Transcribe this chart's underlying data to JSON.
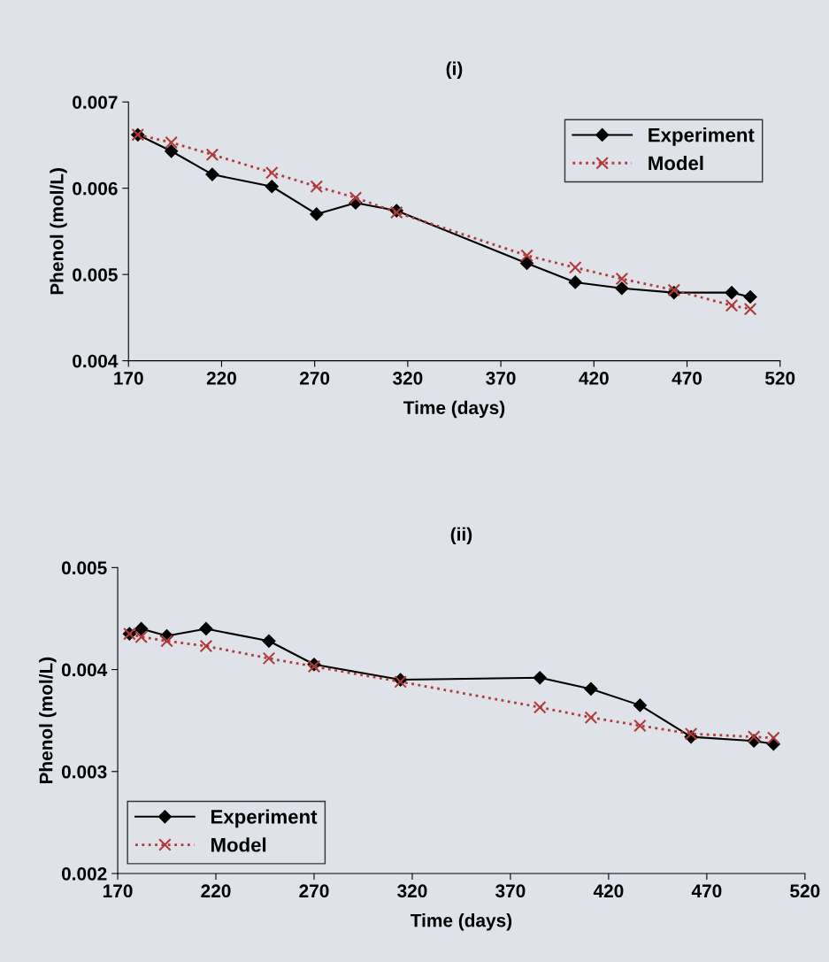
{
  "chart_data": [
    {
      "type": "line",
      "title": "(i)",
      "xlabel": "Time (days)",
      "ylabel": "Phenol (mol/L)",
      "xlim": [
        170,
        520
      ],
      "xticks": [
        170,
        220,
        270,
        320,
        370,
        420,
        470,
        520
      ],
      "ylim": [
        0.004,
        0.007
      ],
      "yticks": [
        {
          "value": 0.004,
          "label": "0.004"
        },
        {
          "value": 0.005,
          "label": "0.005"
        },
        {
          "value": 0.006,
          "label": "0.006"
        },
        {
          "value": 0.007,
          "label": "0.007"
        }
      ],
      "grid": false,
      "legend": "top right",
      "series": [
        {
          "name": "Experiment",
          "color": "#000000",
          "marker": "diamond",
          "line_style": "solid",
          "x": [
            175,
            193,
            215,
            247,
            271,
            292,
            314,
            384,
            410,
            435,
            463,
            494,
            504
          ],
          "values": [
            0.00662,
            0.00643,
            0.00616,
            0.00602,
            0.0057,
            0.00583,
            0.00574,
            0.00513,
            0.00491,
            0.00484,
            0.00479,
            0.00479,
            0.00474
          ]
        },
        {
          "name": "Model",
          "color": "#b03a3a",
          "marker": "cross",
          "line_style": "dotted",
          "x": [
            175,
            193,
            215,
            247,
            271,
            292,
            314,
            384,
            410,
            435,
            463,
            494,
            504
          ],
          "values": [
            0.00662,
            0.00653,
            0.00639,
            0.00618,
            0.00602,
            0.00589,
            0.00572,
            0.00522,
            0.00508,
            0.00495,
            0.00482,
            0.00464,
            0.0046
          ]
        }
      ]
    },
    {
      "type": "line",
      "title": "(ii)",
      "xlabel": "Time (days)",
      "ylabel": "Phenol (mol/L)",
      "xlim": [
        170,
        520
      ],
      "xticks": [
        170,
        220,
        270,
        320,
        370,
        420,
        470,
        520
      ],
      "ylim": [
        0.002,
        0.005
      ],
      "yticks": [
        {
          "value": 0.002,
          "label": "0.002"
        },
        {
          "value": 0.003,
          "label": "0.003"
        },
        {
          "value": 0.004,
          "label": "0.004"
        },
        {
          "value": 0.005,
          "label": "0.005"
        }
      ],
      "grid": false,
      "legend": "bottom left",
      "series": [
        {
          "name": "Experiment",
          "color": "#000000",
          "marker": "diamond",
          "line_style": "solid",
          "x": [
            176,
            182,
            195,
            215,
            247,
            270,
            314,
            385,
            411,
            436,
            462,
            494,
            504
          ],
          "values": [
            0.00435,
            0.0044,
            0.00433,
            0.0044,
            0.00428,
            0.00405,
            0.0039,
            0.00392,
            0.00381,
            0.00365,
            0.00334,
            0.0033,
            0.00327
          ]
        },
        {
          "name": "Model",
          "color": "#b03a3a",
          "marker": "cross",
          "line_style": "dotted",
          "x": [
            176,
            182,
            195,
            215,
            247,
            270,
            314,
            385,
            411,
            436,
            462,
            494,
            504
          ],
          "values": [
            0.00435,
            0.00432,
            0.00428,
            0.00423,
            0.00411,
            0.00403,
            0.00388,
            0.00363,
            0.00353,
            0.00345,
            0.00337,
            0.00334,
            0.00333
          ]
        }
      ]
    }
  ]
}
